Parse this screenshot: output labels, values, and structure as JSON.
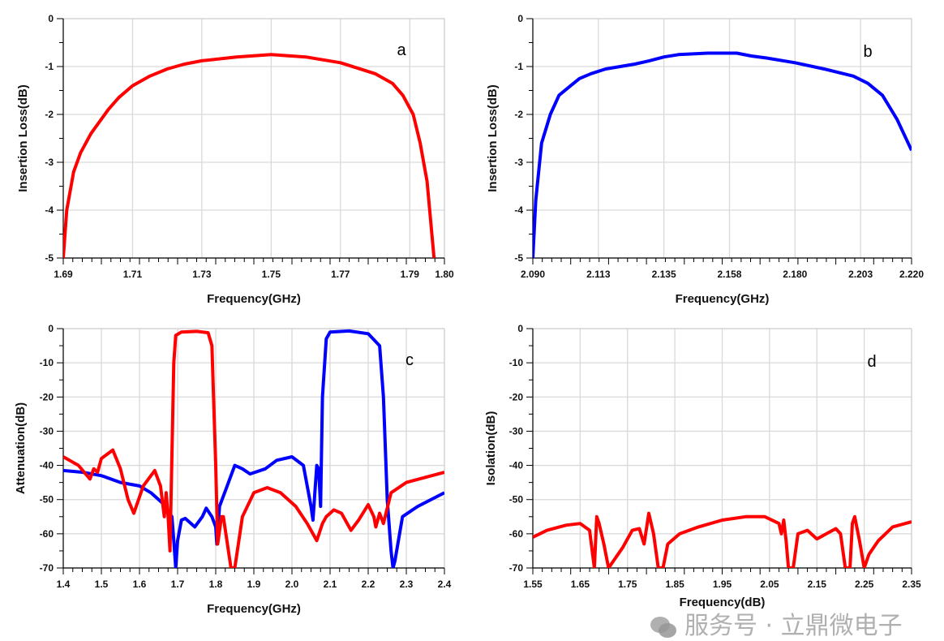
{
  "colors": {
    "red": "#ff0000",
    "blue": "#0000ff",
    "grid": "#d9d9d9"
  },
  "watermark": {
    "icon": "wechat-icon",
    "text": "服务号 · 立鼎微电子"
  },
  "chart_data": [
    {
      "type": "line",
      "panel_label": "a",
      "xlabel": "Frequency(GHz)",
      "ylabel": "Insertion Loss(dB)",
      "xlim": [
        1.69,
        1.8
      ],
      "ylim": [
        -5,
        0
      ],
      "xticks": [
        1.69,
        1.71,
        1.73,
        1.75,
        1.77,
        1.79,
        1.8
      ],
      "xtick_labels": [
        "1.69",
        "1.71",
        "1.73",
        "1.75",
        "1.77",
        "1.79",
        "1.80"
      ],
      "yticks": [
        0,
        -1,
        -2,
        -3,
        -4,
        -5
      ],
      "ytick_labels": [
        "0",
        "-1",
        "-2",
        "-3",
        "-4",
        "-5"
      ],
      "grid": true,
      "series": [
        {
          "name": "red",
          "color": "#ff0000",
          "points": [
            [
              1.69,
              -5
            ],
            [
              1.691,
              -4
            ],
            [
              1.693,
              -3.2
            ],
            [
              1.695,
              -2.8
            ],
            [
              1.698,
              -2.4
            ],
            [
              1.7,
              -2.2
            ],
            [
              1.703,
              -1.9
            ],
            [
              1.706,
              -1.65
            ],
            [
              1.71,
              -1.4
            ],
            [
              1.715,
              -1.2
            ],
            [
              1.72,
              -1.05
            ],
            [
              1.725,
              -0.95
            ],
            [
              1.73,
              -0.88
            ],
            [
              1.74,
              -0.8
            ],
            [
              1.75,
              -0.75
            ],
            [
              1.76,
              -0.8
            ],
            [
              1.77,
              -0.92
            ],
            [
              1.78,
              -1.15
            ],
            [
              1.785,
              -1.35
            ],
            [
              1.788,
              -1.6
            ],
            [
              1.791,
              -2.0
            ],
            [
              1.793,
              -2.6
            ],
            [
              1.795,
              -3.4
            ],
            [
              1.796,
              -4.2
            ],
            [
              1.797,
              -5
            ]
          ]
        }
      ]
    },
    {
      "type": "line",
      "panel_label": "b",
      "xlabel": "Frequency(GHz)",
      "ylabel": "Insertion Loss(dB)",
      "xlim": [
        2.09,
        2.22
      ],
      "ylim": [
        -5,
        0
      ],
      "xticks": [
        2.09,
        2.1125,
        2.135,
        2.1575,
        2.18,
        2.2025,
        2.22
      ],
      "xtick_labels": [
        "2.090",
        "2.113",
        "2.135",
        "2.158",
        "2.180",
        "2.203",
        "2.220"
      ],
      "yticks": [
        0,
        -1,
        -2,
        -3,
        -4,
        -5
      ],
      "ytick_labels": [
        "0",
        "-1",
        "-2",
        "-3",
        "-4",
        "-5"
      ],
      "grid": true,
      "series": [
        {
          "name": "blue",
          "color": "#0000ff",
          "points": [
            [
              2.09,
              -5
            ],
            [
              2.091,
              -3.8
            ],
            [
              2.093,
              -2.6
            ],
            [
              2.096,
              -2.0
            ],
            [
              2.099,
              -1.6
            ],
            [
              2.103,
              -1.4
            ],
            [
              2.106,
              -1.25
            ],
            [
              2.11,
              -1.15
            ],
            [
              2.115,
              -1.05
            ],
            [
              2.12,
              -1.0
            ],
            [
              2.125,
              -0.95
            ],
            [
              2.13,
              -0.88
            ],
            [
              2.135,
              -0.8
            ],
            [
              2.14,
              -0.75
            ],
            [
              2.15,
              -0.72
            ],
            [
              2.16,
              -0.72
            ],
            [
              2.165,
              -0.78
            ],
            [
              2.17,
              -0.82
            ],
            [
              2.18,
              -0.92
            ],
            [
              2.19,
              -1.05
            ],
            [
              2.2,
              -1.2
            ],
            [
              2.205,
              -1.35
            ],
            [
              2.21,
              -1.6
            ],
            [
              2.215,
              -2.1
            ],
            [
              2.22,
              -2.75
            ]
          ]
        }
      ]
    },
    {
      "type": "line",
      "panel_label": "c",
      "xlabel": "Frequency(GHz)",
      "ylabel": "Attenuation(dB)",
      "xlim": [
        1.4,
        2.4
      ],
      "ylim": [
        -70,
        0
      ],
      "xticks": [
        1.4,
        1.5,
        1.6,
        1.7,
        1.8,
        1.9,
        2.0,
        2.1,
        2.2,
        2.3,
        2.4
      ],
      "xtick_labels": [
        "1.4",
        "1.5",
        "1.6",
        "1.7",
        "1.8",
        "1.9",
        "2.0",
        "2.1",
        "2.2",
        "2.3",
        "2.4"
      ],
      "yticks": [
        0,
        -10,
        -20,
        -30,
        -40,
        -50,
        -60,
        -70
      ],
      "ytick_labels": [
        "0",
        "-10",
        "-20",
        "-30",
        "-40",
        "-50",
        "-60",
        "-70"
      ],
      "grid": true,
      "series": [
        {
          "name": "blue",
          "color": "#0000ff",
          "points": [
            [
              1.4,
              -41.5
            ],
            [
              1.45,
              -42
            ],
            [
              1.5,
              -43
            ],
            [
              1.55,
              -45
            ],
            [
              1.6,
              -46
            ],
            [
              1.63,
              -48
            ],
            [
              1.66,
              -51
            ],
            [
              1.685,
              -55
            ],
            [
              1.69,
              -62
            ],
            [
              1.695,
              -70
            ],
            [
              1.7,
              -62
            ],
            [
              1.71,
              -56
            ],
            [
              1.72,
              -55.5
            ],
            [
              1.745,
              -58
            ],
            [
              1.765,
              -55
            ],
            [
              1.775,
              -52.5
            ],
            [
              1.79,
              -55
            ],
            [
              1.8,
              -58
            ],
            [
              1.803,
              -63
            ],
            [
              1.81,
              -52
            ],
            [
              1.83,
              -46
            ],
            [
              1.85,
              -40
            ],
            [
              1.87,
              -41
            ],
            [
              1.89,
              -42.5
            ],
            [
              1.93,
              -41
            ],
            [
              1.96,
              -38.5
            ],
            [
              2.0,
              -37.5
            ],
            [
              2.03,
              -40
            ],
            [
              2.05,
              -52
            ],
            [
              2.055,
              -56
            ],
            [
              2.065,
              -40
            ],
            [
              2.07,
              -41
            ],
            [
              2.075,
              -52
            ],
            [
              2.08,
              -20
            ],
            [
              2.09,
              -3
            ],
            [
              2.1,
              -1
            ],
            [
              2.15,
              -0.7
            ],
            [
              2.2,
              -1.5
            ],
            [
              2.23,
              -5
            ],
            [
              2.24,
              -20
            ],
            [
              2.25,
              -50
            ],
            [
              2.26,
              -65
            ],
            [
              2.265,
              -70
            ],
            [
              2.27,
              -68
            ],
            [
              2.29,
              -55
            ],
            [
              2.33,
              -52
            ],
            [
              2.4,
              -48
            ]
          ]
        },
        {
          "name": "red",
          "color": "#ff0000",
          "points": [
            [
              1.4,
              -37.5
            ],
            [
              1.44,
              -40
            ],
            [
              1.47,
              -44
            ],
            [
              1.48,
              -41
            ],
            [
              1.49,
              -42
            ],
            [
              1.5,
              -38
            ],
            [
              1.53,
              -35.5
            ],
            [
              1.55,
              -41
            ],
            [
              1.57,
              -50
            ],
            [
              1.585,
              -54
            ],
            [
              1.61,
              -46
            ],
            [
              1.64,
              -41.5
            ],
            [
              1.655,
              -46
            ],
            [
              1.665,
              -55
            ],
            [
              1.67,
              -48
            ],
            [
              1.675,
              -55
            ],
            [
              1.68,
              -65
            ],
            [
              1.69,
              -10
            ],
            [
              1.695,
              -2
            ],
            [
              1.71,
              -1
            ],
            [
              1.75,
              -0.8
            ],
            [
              1.78,
              -1.2
            ],
            [
              1.79,
              -5
            ],
            [
              1.8,
              -40
            ],
            [
              1.805,
              -63
            ],
            [
              1.815,
              -55
            ],
            [
              1.82,
              -55
            ],
            [
              1.84,
              -70
            ],
            [
              1.85,
              -70
            ],
            [
              1.87,
              -55
            ],
            [
              1.9,
              -48
            ],
            [
              1.935,
              -46.5
            ],
            [
              1.97,
              -48
            ],
            [
              2.01,
              -52
            ],
            [
              2.04,
              -57
            ],
            [
              2.065,
              -62
            ],
            [
              2.08,
              -57
            ],
            [
              2.09,
              -55
            ],
            [
              2.11,
              -53
            ],
            [
              2.13,
              -54
            ],
            [
              2.155,
              -59
            ],
            [
              2.175,
              -56
            ],
            [
              2.2,
              -51.5
            ],
            [
              2.215,
              -55
            ],
            [
              2.22,
              -58
            ],
            [
              2.23,
              -54
            ],
            [
              2.24,
              -57
            ],
            [
              2.26,
              -48
            ],
            [
              2.3,
              -45
            ],
            [
              2.35,
              -43.5
            ],
            [
              2.4,
              -42
            ]
          ]
        }
      ]
    },
    {
      "type": "line",
      "panel_label": "d",
      "xlabel": "Frequency(dB)",
      "ylabel": "Isolation(dB)",
      "xlim": [
        1.55,
        2.35
      ],
      "ylim": [
        -70,
        0
      ],
      "xticks": [
        1.55,
        1.65,
        1.75,
        1.85,
        1.95,
        2.05,
        2.15,
        2.25,
        2.35
      ],
      "xtick_labels": [
        "1.55",
        "1.65",
        "1.75",
        "1.85",
        "1.95",
        "2.05",
        "2.15",
        "2.25",
        "2.35"
      ],
      "yticks": [
        0,
        -10,
        -20,
        -30,
        -40,
        -50,
        -60,
        -70
      ],
      "ytick_labels": [
        "0",
        "-10",
        "-20",
        "-30",
        "-40",
        "-50",
        "-60",
        "-70"
      ],
      "grid": true,
      "series": [
        {
          "name": "red",
          "color": "#ff0000",
          "points": [
            [
              1.55,
              -61
            ],
            [
              1.58,
              -59
            ],
            [
              1.62,
              -57.5
            ],
            [
              1.65,
              -57
            ],
            [
              1.67,
              -59
            ],
            [
              1.68,
              -70
            ],
            [
              1.685,
              -55
            ],
            [
              1.69,
              -57
            ],
            [
              1.7,
              -63
            ],
            [
              1.71,
              -70
            ],
            [
              1.72,
              -68
            ],
            [
              1.74,
              -64
            ],
            [
              1.76,
              -59
            ],
            [
              1.775,
              -58.5
            ],
            [
              1.785,
              -63
            ],
            [
              1.795,
              -54
            ],
            [
              1.805,
              -60
            ],
            [
              1.815,
              -70
            ],
            [
              1.825,
              -70
            ],
            [
              1.835,
              -63
            ],
            [
              1.86,
              -60
            ],
            [
              1.9,
              -58
            ],
            [
              1.95,
              -56
            ],
            [
              2.0,
              -55
            ],
            [
              2.04,
              -55
            ],
            [
              2.07,
              -57
            ],
            [
              2.075,
              -60
            ],
            [
              2.08,
              -56
            ],
            [
              2.085,
              -62
            ],
            [
              2.09,
              -70
            ],
            [
              2.1,
              -70
            ],
            [
              2.11,
              -60
            ],
            [
              2.13,
              -59
            ],
            [
              2.15,
              -61.5
            ],
            [
              2.17,
              -60
            ],
            [
              2.19,
              -58.5
            ],
            [
              2.2,
              -60
            ],
            [
              2.21,
              -70
            ],
            [
              2.22,
              -70
            ],
            [
              2.225,
              -57
            ],
            [
              2.23,
              -55
            ],
            [
              2.24,
              -62
            ],
            [
              2.25,
              -70
            ],
            [
              2.26,
              -66
            ],
            [
              2.28,
              -62
            ],
            [
              2.31,
              -58
            ],
            [
              2.35,
              -56.5
            ]
          ]
        }
      ]
    }
  ]
}
